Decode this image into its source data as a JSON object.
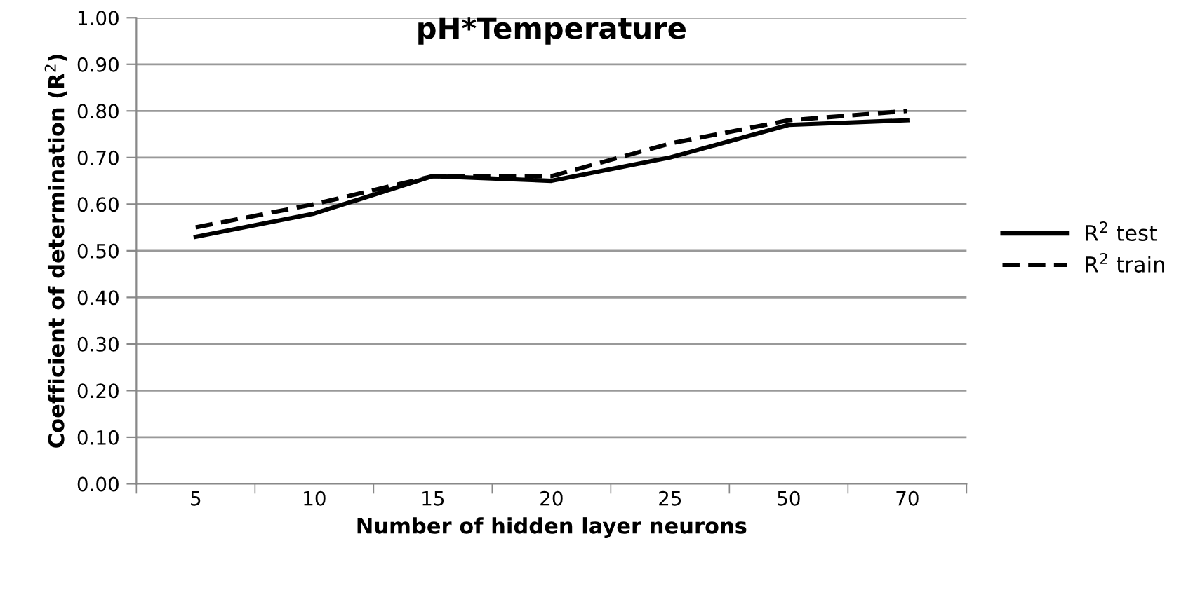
{
  "chart_data": {
    "type": "line",
    "title": "pH*Temperature",
    "xlabel": "Number of hidden layer neurons",
    "ylabel": "Coefficient of determination (R$^{2}$)",
    "categories": [
      "5",
      "10",
      "15",
      "20",
      "25",
      "50",
      "70"
    ],
    "series": [
      {
        "name": "R$^{2}$ test",
        "color": "#000000",
        "line_style": "solid",
        "values": [
          0.53,
          0.58,
          0.66,
          0.65,
          0.7,
          0.77,
          0.78
        ]
      },
      {
        "name": "R$^{2}$ train",
        "color": "#000000",
        "line_style": "dashed",
        "values": [
          0.55,
          0.6,
          0.66,
          0.66,
          0.73,
          0.78,
          0.8
        ]
      }
    ],
    "ylim": [
      0,
      1
    ],
    "yticks": [
      {
        "value": 0,
        "label": "0.00"
      },
      {
        "value": 0.1,
        "label": "0.10"
      },
      {
        "value": 0.2,
        "label": "0.20"
      },
      {
        "value": 0.3,
        "label": "0.30"
      },
      {
        "value": 0.4,
        "label": "0.40"
      },
      {
        "value": 0.5,
        "label": "0.50"
      },
      {
        "value": 0.6,
        "label": "0.60"
      },
      {
        "value": 0.7,
        "label": "0.70"
      },
      {
        "value": 0.8,
        "label": "0.80"
      },
      {
        "value": 0.9,
        "label": "0.90"
      },
      {
        "value": 1,
        "label": "1.00"
      }
    ],
    "grid": "y",
    "legend": "right",
    "marker": "none"
  }
}
